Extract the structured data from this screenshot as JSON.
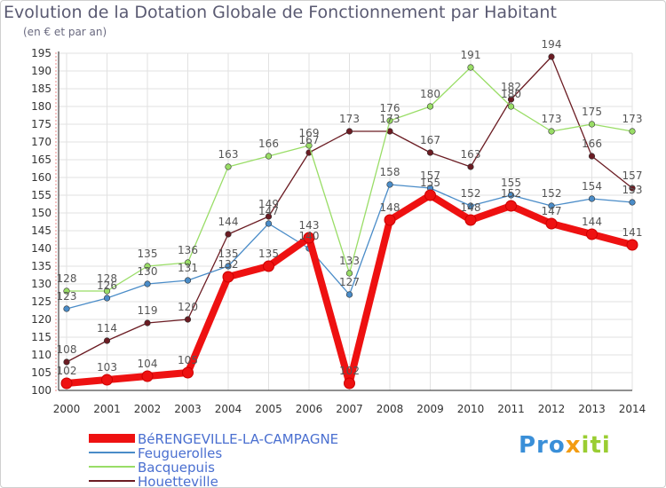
{
  "title": "Evolution de la Dotation Globale de Fonctionnement par Habitant",
  "subtitle": "(en € et par an)",
  "logo_text": "Proxiti",
  "chart_data": {
    "type": "line",
    "title": "Evolution de la Dotation Globale de Fonctionnement par Habitant",
    "ylabel": "(en € et par an)",
    "ylim": [
      100,
      195
    ],
    "y_ticks": [
      100,
      105,
      110,
      115,
      120,
      125,
      130,
      135,
      140,
      145,
      150,
      155,
      160,
      165,
      170,
      175,
      180,
      185,
      190,
      195
    ],
    "x": [
      "2000",
      "2001",
      "2002",
      "2003",
      "2004",
      "2005",
      "2006",
      "2007",
      "2008",
      "2009",
      "2010",
      "2011",
      "2012",
      "2013",
      "2014"
    ],
    "series": [
      {
        "name": "Houetteville",
        "color": "#6b1c23",
        "values": [
          108,
          114,
          119,
          120,
          144,
          149,
          167,
          173,
          173,
          167,
          163,
          182,
          194,
          166,
          157
        ]
      },
      {
        "name": "Bacquepuis",
        "color": "#99dd66",
        "values": [
          128,
          128,
          135,
          136,
          163,
          166,
          169,
          133,
          176,
          180,
          191,
          180,
          173,
          175,
          173
        ]
      },
      {
        "name": "Feuguerolles",
        "color": "#4a8cc8",
        "values": [
          123,
          126,
          130,
          131,
          135,
          147,
          140,
          127,
          158,
          157,
          152,
          155,
          152,
          154,
          153
        ]
      },
      {
        "name": "BéRENGEVILLE-LA-CAMPAGNE",
        "color": "#ee1111",
        "values": [
          102,
          103,
          104,
          105,
          132,
          135,
          143,
          102,
          148,
          155,
          148,
          152,
          147,
          144,
          141
        ]
      }
    ],
    "legend_position": "bottom-left"
  }
}
